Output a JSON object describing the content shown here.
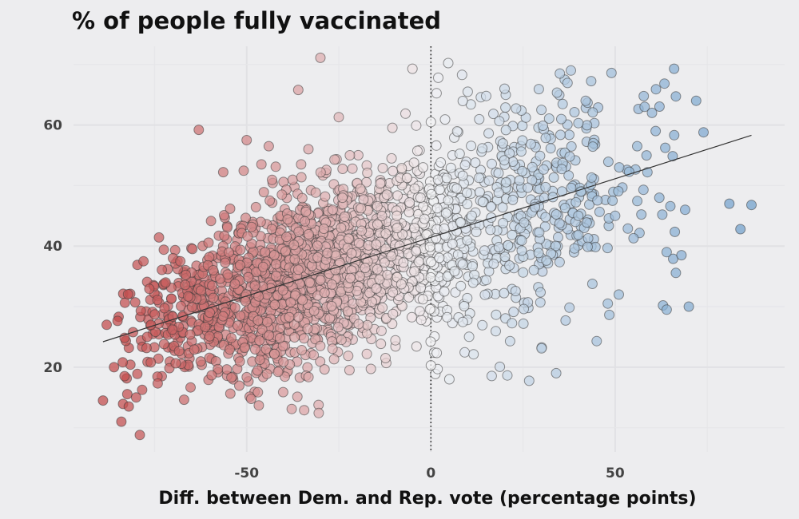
{
  "chart_data": {
    "type": "scatter",
    "title": "% of people fully vaccinated",
    "xlabel": "Diff. between Dem. and Rep. vote (percentage points)",
    "ylabel": "",
    "xlim": [
      -97,
      96
    ],
    "ylim": [
      6,
      73
    ],
    "xticks": [
      -50,
      0,
      50
    ],
    "xtick_labels": [
      "-50",
      "0",
      "50"
    ],
    "yticks": [
      20,
      40,
      60
    ],
    "ytick_labels": [
      "20",
      "40",
      "60"
    ],
    "x_minor_gridlines": [
      -75,
      -25,
      25,
      75
    ],
    "y_minor_gridlines": [
      10,
      30,
      50,
      70
    ],
    "reference_line": {
      "x": 0,
      "style": "dotted"
    },
    "trend_line": {
      "x": [
        -89,
        87
      ],
      "y": [
        24.2,
        58.3
      ]
    },
    "color_scale": {
      "negative": "#c24a4a",
      "mid": "#f2f2f4",
      "positive": "#6f9fcb",
      "range": [
        -85,
        85
      ]
    },
    "highlighted_points": {
      "x": [
        -89,
        -88,
        -86,
        -84,
        -82,
        -80,
        -79,
        -78,
        -77,
        -76,
        -72,
        -70,
        -68,
        -63,
        -60,
        -50,
        -46,
        -44,
        -36,
        -30,
        -25,
        -24,
        -22,
        -5,
        -4,
        0,
        0,
        2,
        5,
        10,
        15,
        20,
        30,
        34,
        35,
        38,
        40,
        42,
        45,
        48,
        49,
        50,
        51,
        55,
        56,
        58,
        60,
        61,
        62,
        63,
        64,
        64,
        65,
        66,
        68,
        69,
        70,
        72,
        74,
        81,
        84,
        87
      ],
      "y": [
        14.5,
        27,
        20,
        11,
        13.5,
        15,
        8.8,
        37.5,
        25,
        27,
        34,
        38,
        37.5,
        59.2,
        29,
        57.5,
        53.5,
        56.5,
        65.8,
        71.1,
        61.3,
        48,
        55,
        69.3,
        59.9,
        60.5,
        20.3,
        67.8,
        18,
        65.5,
        64.8,
        66,
        62.5,
        19,
        68.5,
        69,
        45,
        64,
        24.3,
        30.5,
        68.6,
        45,
        32,
        41.3,
        56.5,
        63,
        62,
        59,
        48,
        30.2,
        29.5,
        39,
        46.6,
        69.3,
        38.5,
        46,
        30,
        64,
        58.8,
        47,
        42.8,
        46.8
      ]
    },
    "n_points_approx": 2200
  }
}
